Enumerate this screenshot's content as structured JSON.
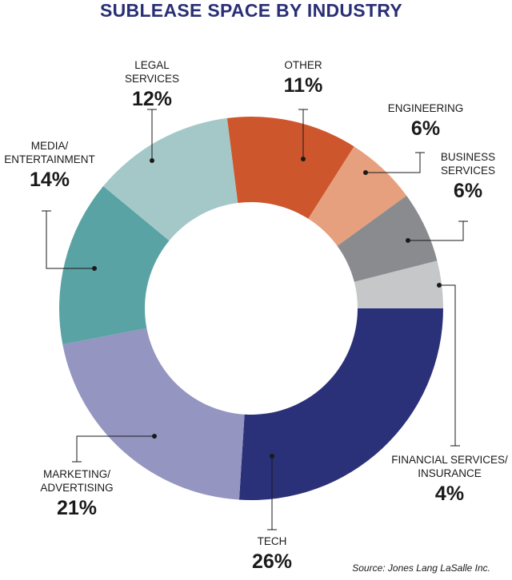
{
  "chart_data": {
    "type": "pie",
    "donut": true,
    "title": "SUBLEASE SPACE BY INDUSTRY",
    "source": "Source: Jones Lang LaSalle Inc.",
    "slices": [
      {
        "label": [
          "TECH"
        ],
        "value": 26,
        "value_label": "26%",
        "color": "#2b3178"
      },
      {
        "label": [
          "MARKETING/",
          "ADVERTISING"
        ],
        "value": 21,
        "value_label": "21%",
        "color": "#9495c1"
      },
      {
        "label": [
          "MEDIA/",
          "ENTERTAINMENT"
        ],
        "value": 14,
        "value_label": "14%",
        "color": "#5aa3a4"
      },
      {
        "label": [
          "LEGAL",
          "SERVICES"
        ],
        "value": 12,
        "value_label": "12%",
        "color": "#a4c8c8"
      },
      {
        "label": [
          "OTHER"
        ],
        "value": 11,
        "value_label": "11%",
        "color": "#ce562d"
      },
      {
        "label": [
          "ENGINEERING"
        ],
        "value": 6,
        "value_label": "6%",
        "color": "#e7a07d"
      },
      {
        "label": [
          "BUSINESS",
          "SERVICES"
        ],
        "value": 6,
        "value_label": "6%",
        "color": "#8a8b8f"
      },
      {
        "label": [
          "FINANCIAL SERVICES/",
          "INSURANCE"
        ],
        "value": 4,
        "value_label": "4%",
        "color": "#c5c7c9"
      }
    ]
  }
}
